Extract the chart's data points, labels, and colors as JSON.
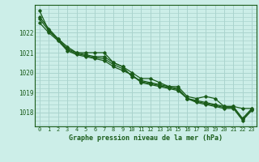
{
  "title": "Graphe pression niveau de la mer (hPa)",
  "bg_color": "#cceee8",
  "grid_color": "#aad4ce",
  "line_color": "#1a5c1a",
  "x_ticks": [
    0,
    1,
    2,
    3,
    4,
    5,
    6,
    7,
    8,
    9,
    10,
    11,
    12,
    13,
    14,
    15,
    16,
    17,
    18,
    19,
    20,
    21,
    22,
    23
  ],
  "ylim": [
    1017.3,
    1023.4
  ],
  "y_ticks": [
    1018,
    1019,
    1020,
    1021,
    1022
  ],
  "series": [
    [
      1022.8,
      1022.2,
      1021.7,
      1021.3,
      1021.0,
      1021.0,
      1021.0,
      1021.0,
      1020.5,
      1020.3,
      1020.0,
      1019.7,
      1019.7,
      1019.5,
      1019.3,
      1019.3,
      1018.8,
      1018.7,
      1018.8,
      1018.7,
      1018.3,
      1018.3,
      1018.2,
      1018.2
    ],
    [
      1023.1,
      1022.1,
      1021.7,
      1021.2,
      1021.0,
      1020.9,
      1020.8,
      1020.8,
      1020.5,
      1020.3,
      1019.8,
      1019.6,
      1019.5,
      1019.4,
      1019.3,
      1019.2,
      1018.7,
      1018.6,
      1018.5,
      1018.4,
      1018.3,
      1018.3,
      1017.7,
      1018.2
    ],
    [
      1022.5,
      1022.0,
      1021.6,
      1021.1,
      1020.9,
      1020.8,
      1020.7,
      1020.6,
      1020.3,
      1020.1,
      1019.9,
      1019.5,
      1019.4,
      1019.3,
      1019.2,
      1019.1,
      1018.7,
      1018.5,
      1018.4,
      1018.3,
      1018.2,
      1018.2,
      1017.6,
      1018.1
    ],
    [
      1022.7,
      1022.1,
      1021.65,
      1021.15,
      1020.95,
      1020.85,
      1020.75,
      1020.7,
      1020.4,
      1020.2,
      1019.85,
      1019.55,
      1019.45,
      1019.35,
      1019.25,
      1019.15,
      1018.7,
      1018.55,
      1018.45,
      1018.35,
      1018.25,
      1018.25,
      1017.65,
      1018.15
    ]
  ]
}
